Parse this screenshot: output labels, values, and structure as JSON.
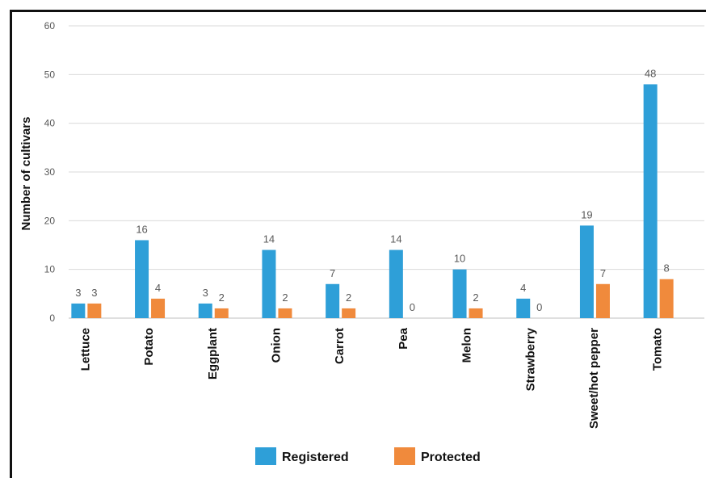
{
  "chart_data": {
    "type": "bar",
    "ylabel": "Number of cultivars",
    "xlabel": "",
    "ylim": [
      0,
      60
    ],
    "yticks": [
      0,
      10,
      20,
      30,
      40,
      50,
      60
    ],
    "grid": true,
    "legend_position": "bottom",
    "categories": [
      "Lettuce",
      "Potato",
      "Eggplant",
      "Onion",
      "Carrot",
      "Pea",
      "Melon",
      "Strawberry",
      "Sweet/hot pepper",
      "Tomato"
    ],
    "series": [
      {
        "name": "Registered",
        "color": "#2e9fd8",
        "values": [
          3,
          16,
          3,
          14,
          7,
          14,
          10,
          4,
          19,
          48
        ]
      },
      {
        "name": "Protected",
        "color": "#f08a3c",
        "values": [
          3,
          4,
          2,
          2,
          2,
          0,
          2,
          0,
          7,
          8
        ]
      }
    ]
  }
}
